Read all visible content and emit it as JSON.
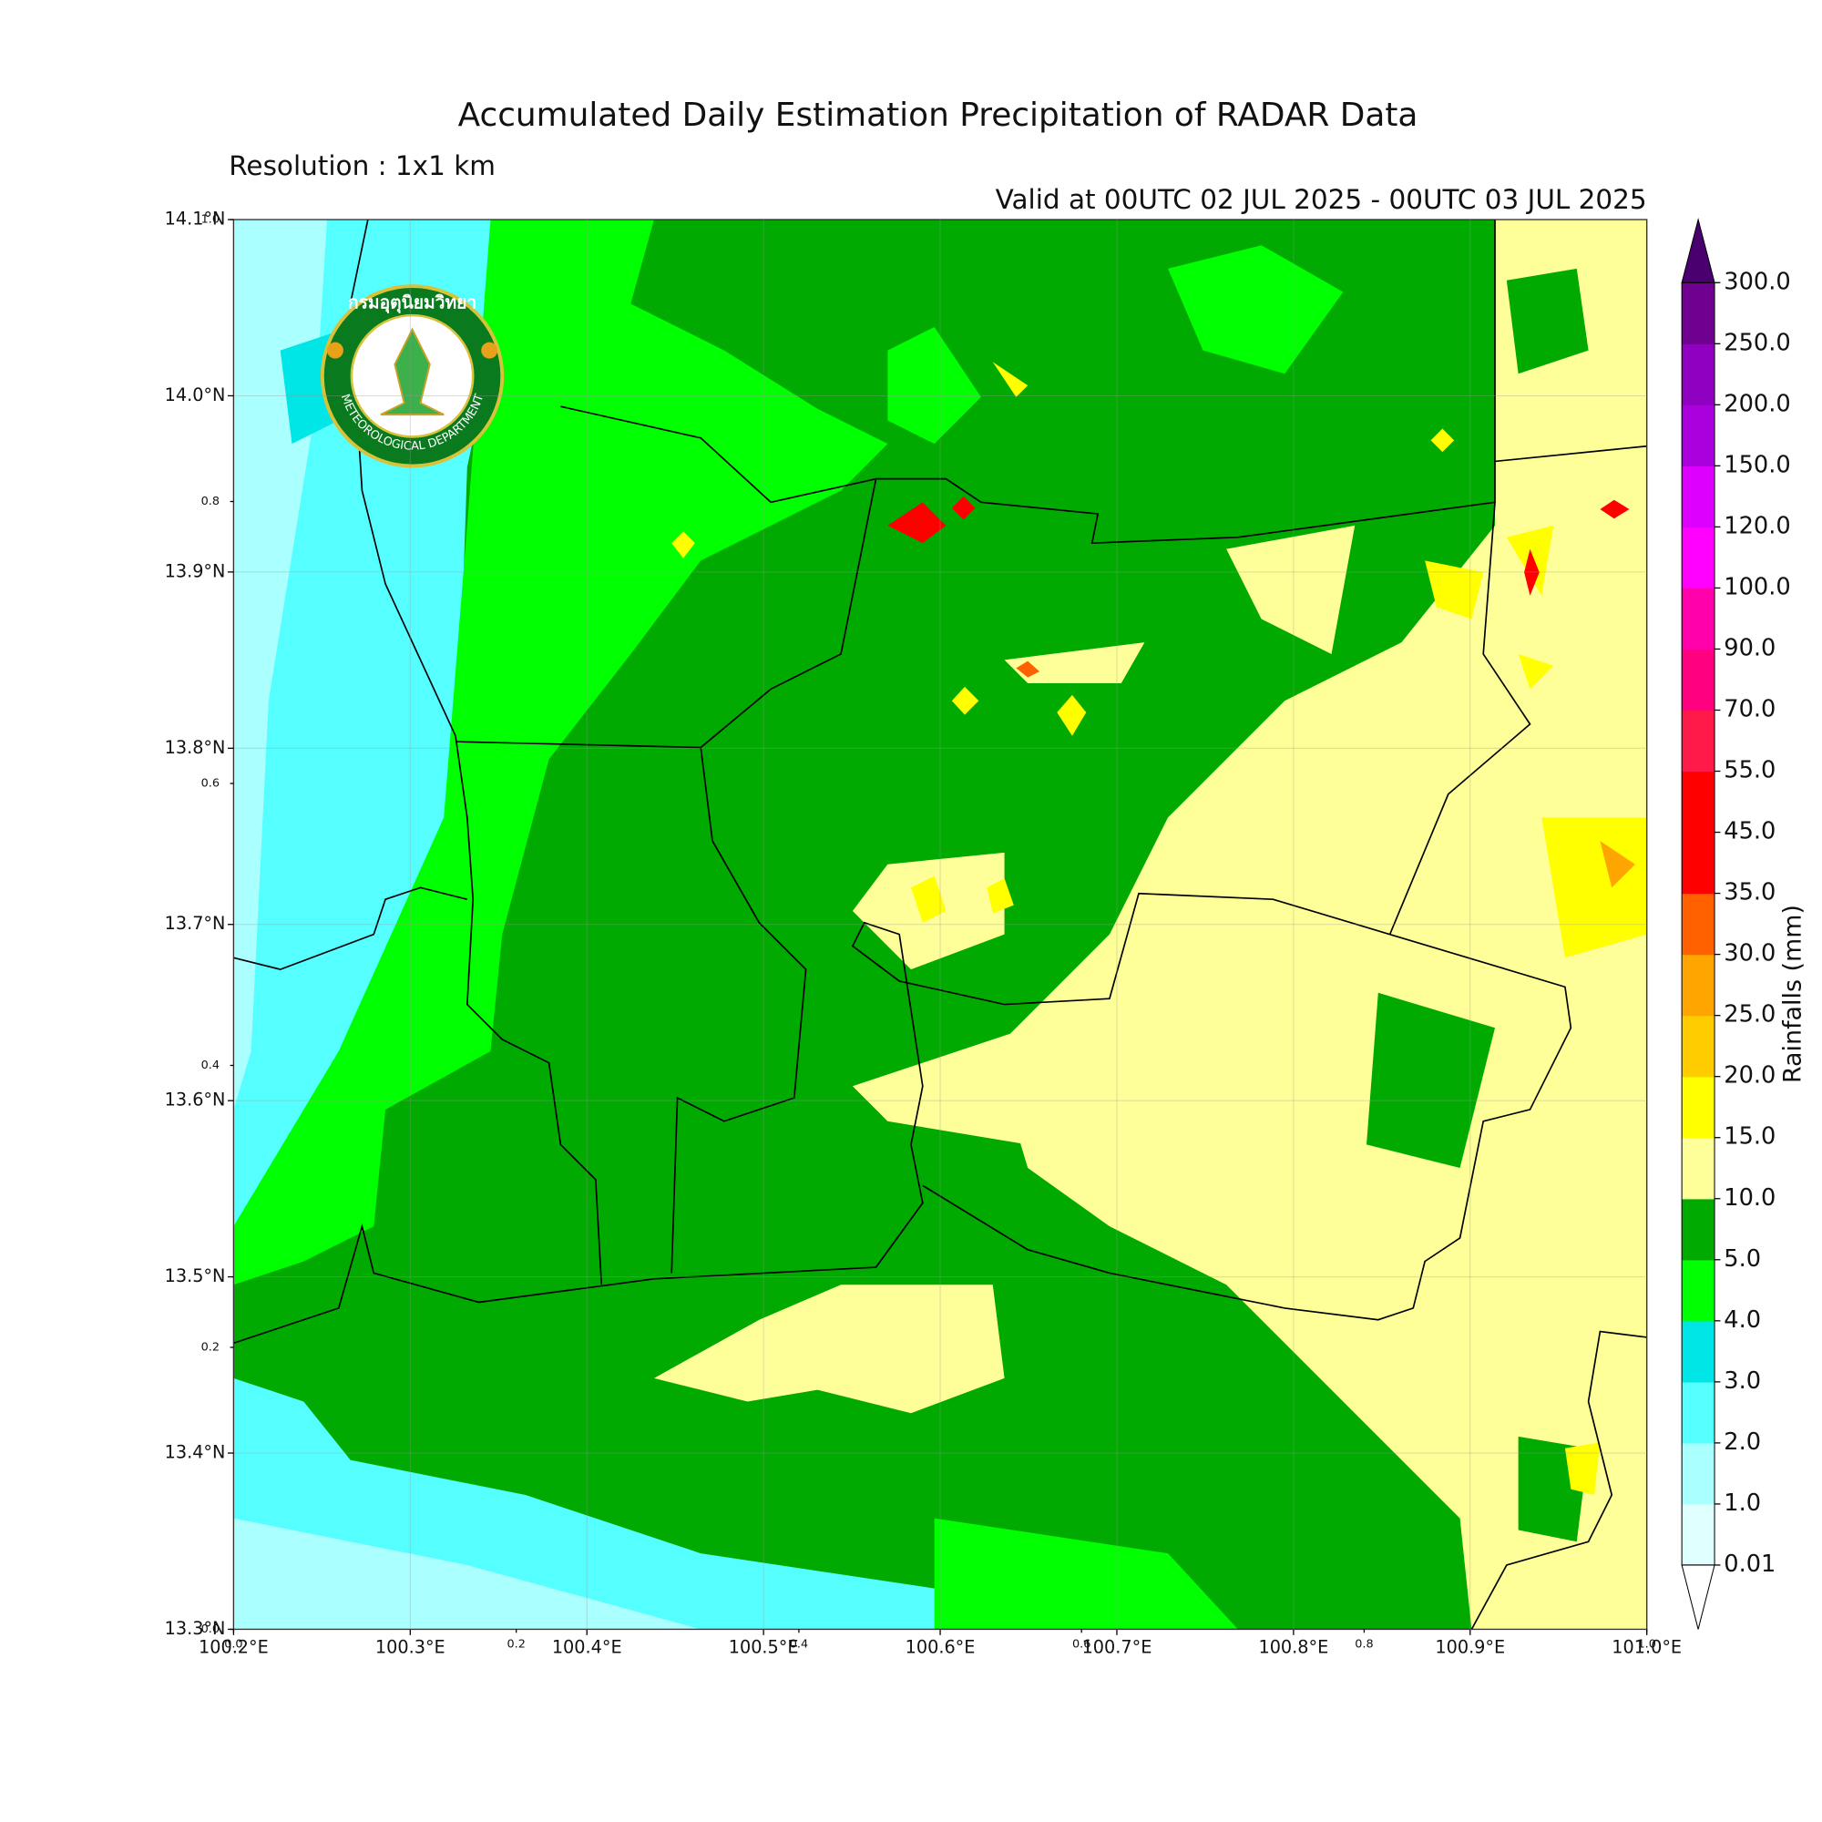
{
  "chart_data": {
    "type": "contour",
    "title": "Accumulated Daily Estimation Precipitation of RADAR Data",
    "subtitle": "Resolution : 1x1 km",
    "valid": "Valid at 00UTC 02 JUL 2025 - 00UTC 03 JUL 2025",
    "xlim": [
      100.2,
      101.0
    ],
    "ylim": [
      13.3,
      14.1
    ],
    "xticks": [
      {
        "value": 100.2,
        "label": "100.2°E"
      },
      {
        "value": 100.3,
        "label": "100.3°E"
      },
      {
        "value": 100.4,
        "label": "100.4°E"
      },
      {
        "value": 100.5,
        "label": "100.5°E"
      },
      {
        "value": 100.6,
        "label": "100.6°E"
      },
      {
        "value": 100.7,
        "label": "100.7°E"
      },
      {
        "value": 100.8,
        "label": "100.8°E"
      },
      {
        "value": 100.9,
        "label": "100.9°E"
      },
      {
        "value": 101.0,
        "label": "101.0°E"
      }
    ],
    "yticks": [
      {
        "value": 13.3,
        "label": "13.3°N"
      },
      {
        "value": 13.4,
        "label": "13.4°N"
      },
      {
        "value": 13.5,
        "label": "13.5°N"
      },
      {
        "value": 13.6,
        "label": "13.6°N"
      },
      {
        "value": 13.7,
        "label": "13.7°N"
      },
      {
        "value": 13.8,
        "label": "13.8°N"
      },
      {
        "value": 13.9,
        "label": "13.9°N"
      },
      {
        "value": 14.0,
        "label": "14.0°N"
      },
      {
        "value": 14.1,
        "label": "14.1°N"
      }
    ],
    "frame_xticks": [
      {
        "value": 0,
        "label": "0.0"
      },
      0.2,
      0.4,
      0.6,
      0.8,
      {
        "value": 1,
        "label": "1.0"
      }
    ],
    "frame_yticks": [
      {
        "value": 0,
        "label": "0.0"
      },
      0.2,
      0.4,
      0.6,
      0.8,
      {
        "value": 1,
        "label": "1.0"
      }
    ],
    "grid": true,
    "colorbar": {
      "label": "Rainfalls (mm)",
      "levels": [
        0.01,
        {
          "value": 1,
          "label": "1.0"
        },
        {
          "value": 2,
          "label": "2.0"
        },
        {
          "value": 3,
          "label": "3.0"
        },
        {
          "value": 4,
          "label": "4.0"
        },
        {
          "value": 5,
          "label": "5.0"
        },
        {
          "value": 10,
          "label": "10.0"
        },
        {
          "value": 15,
          "label": "15.0"
        },
        {
          "value": 20,
          "label": "20.0"
        },
        {
          "value": 25,
          "label": "25.0"
        },
        {
          "value": 30,
          "label": "30.0"
        },
        {
          "value": 35,
          "label": "35.0"
        },
        {
          "value": 45,
          "label": "45.0"
        },
        {
          "value": 55,
          "label": "55.0"
        },
        {
          "value": 70,
          "label": "70.0"
        },
        {
          "value": 90,
          "label": "90.0"
        },
        {
          "value": 100,
          "label": "100.0"
        },
        {
          "value": 120,
          "label": "120.0"
        },
        {
          "value": 150,
          "label": "150.0"
        },
        {
          "value": 200,
          "label": "200.0"
        },
        {
          "value": 250,
          "label": "250.0"
        },
        {
          "value": 300,
          "label": "300.0"
        }
      ],
      "colors": [
        "#e0ffff",
        "#aaffff",
        "#55ffff",
        "#00e5e5",
        "#00ff00",
        "#00aa00",
        "#ffff99",
        "#ffff00",
        "#ffcc00",
        "#ffa500",
        "#ff6000",
        "#ff0000",
        "#ff0000",
        "#ff1a4a",
        "#ff0080",
        "#ff00aa",
        "#ff00ff",
        "#dd00ff",
        "#aa00dd",
        "#9000c0",
        "#700090"
      ],
      "extend_colors": {
        "min": "#ffffff",
        "max": "#4b0070"
      }
    }
  },
  "logo": {
    "thai": "กรมอุตุนิยมวิทยา",
    "english": "METEOROLOGICAL DEPARTMENT"
  }
}
